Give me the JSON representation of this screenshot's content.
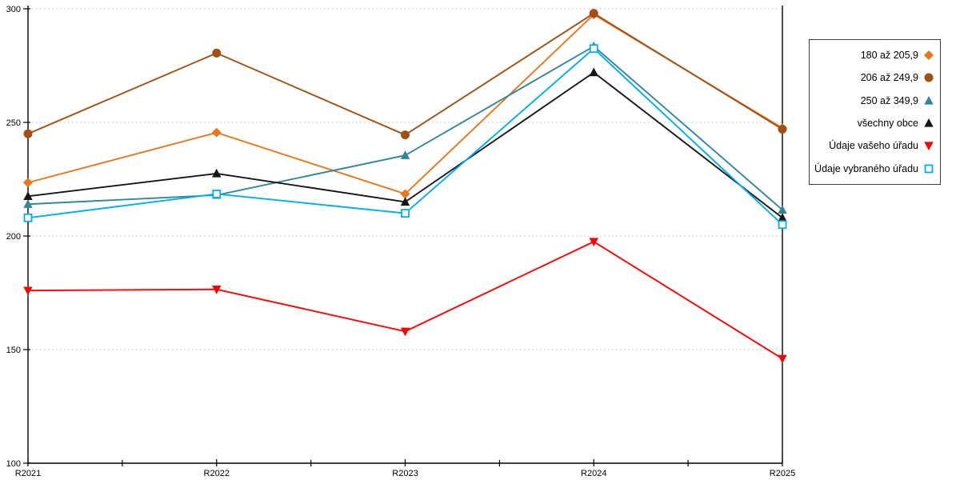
{
  "chart_data": {
    "type": "line",
    "categories": [
      "R2021",
      "R2022",
      "R2023",
      "R2024",
      "R2025"
    ],
    "series": [
      {
        "name": "180 až 205,9",
        "color": "#E8761B",
        "marker": "diamond",
        "values": [
          223.5,
          245.5,
          218.5,
          297.5,
          247.5
        ]
      },
      {
        "name": "206 až 249,9",
        "color": "#A24F13",
        "marker": "circle",
        "values": [
          245.0,
          280.5,
          244.5,
          298.0,
          247.0
        ]
      },
      {
        "name": "250 až 349,9",
        "color": "#31859C",
        "marker": "triangle-up",
        "values": [
          214.0,
          218.0,
          235.5,
          283.5,
          211.5
        ]
      },
      {
        "name": "všechny obce",
        "color": "#161616",
        "marker": "triangle-up",
        "values": [
          217.5,
          227.5,
          215.0,
          272.0,
          208.0
        ]
      },
      {
        "name": "Údaje vašeho úřadu",
        "color": "#FE0000",
        "marker": "triangle-down",
        "values": [
          176.0,
          176.5,
          158.0,
          197.5,
          146.0
        ]
      },
      {
        "name": "Údaje vybraného úřadu",
        "color": "#00AEEF",
        "marker": "square-open",
        "values": [
          208.0,
          218.5,
          210.0,
          282.5,
          205.0
        ]
      }
    ],
    "title": "",
    "xlabel": "",
    "ylabel": "",
    "ylim": [
      100,
      300
    ],
    "y_ticks": [
      100,
      150,
      200,
      250,
      300
    ],
    "grid": "horizontal-dotted",
    "grid_color": "#C9C9C9",
    "axis_color": "#000000",
    "legend_position": "top-right"
  }
}
